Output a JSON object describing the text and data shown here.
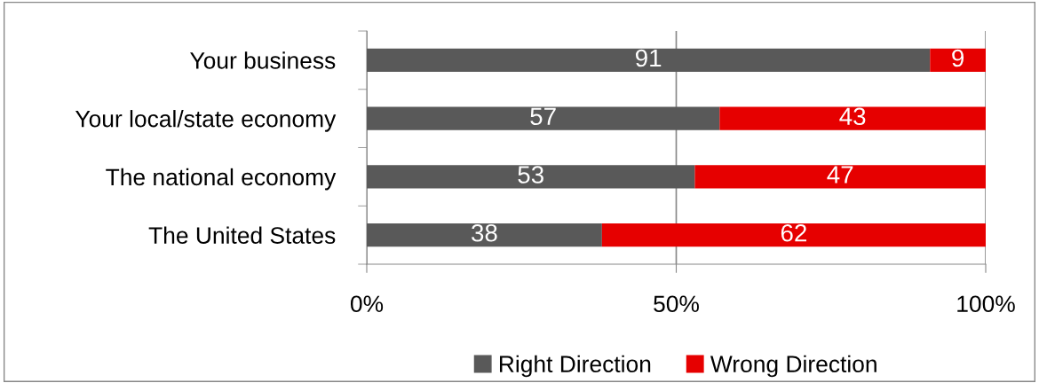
{
  "chart_data": {
    "type": "bar",
    "orientation": "horizontal",
    "stacked": true,
    "categories": [
      "Your business",
      "Your local/state economy",
      "The national economy",
      "The United States"
    ],
    "series": [
      {
        "name": "Right Direction",
        "color": "#595959",
        "values": [
          91,
          57,
          53,
          38
        ]
      },
      {
        "name": "Wrong Direction",
        "color": "#e60000",
        "values": [
          9,
          43,
          47,
          62
        ]
      }
    ],
    "xlim": [
      0,
      100
    ],
    "xticks": [
      {
        "value": 0,
        "label": "0%"
      },
      {
        "value": 50,
        "label": "50%"
      },
      {
        "value": 100,
        "label": "100%"
      }
    ],
    "grid": "x",
    "legend": "bottom",
    "data_labels": true
  }
}
